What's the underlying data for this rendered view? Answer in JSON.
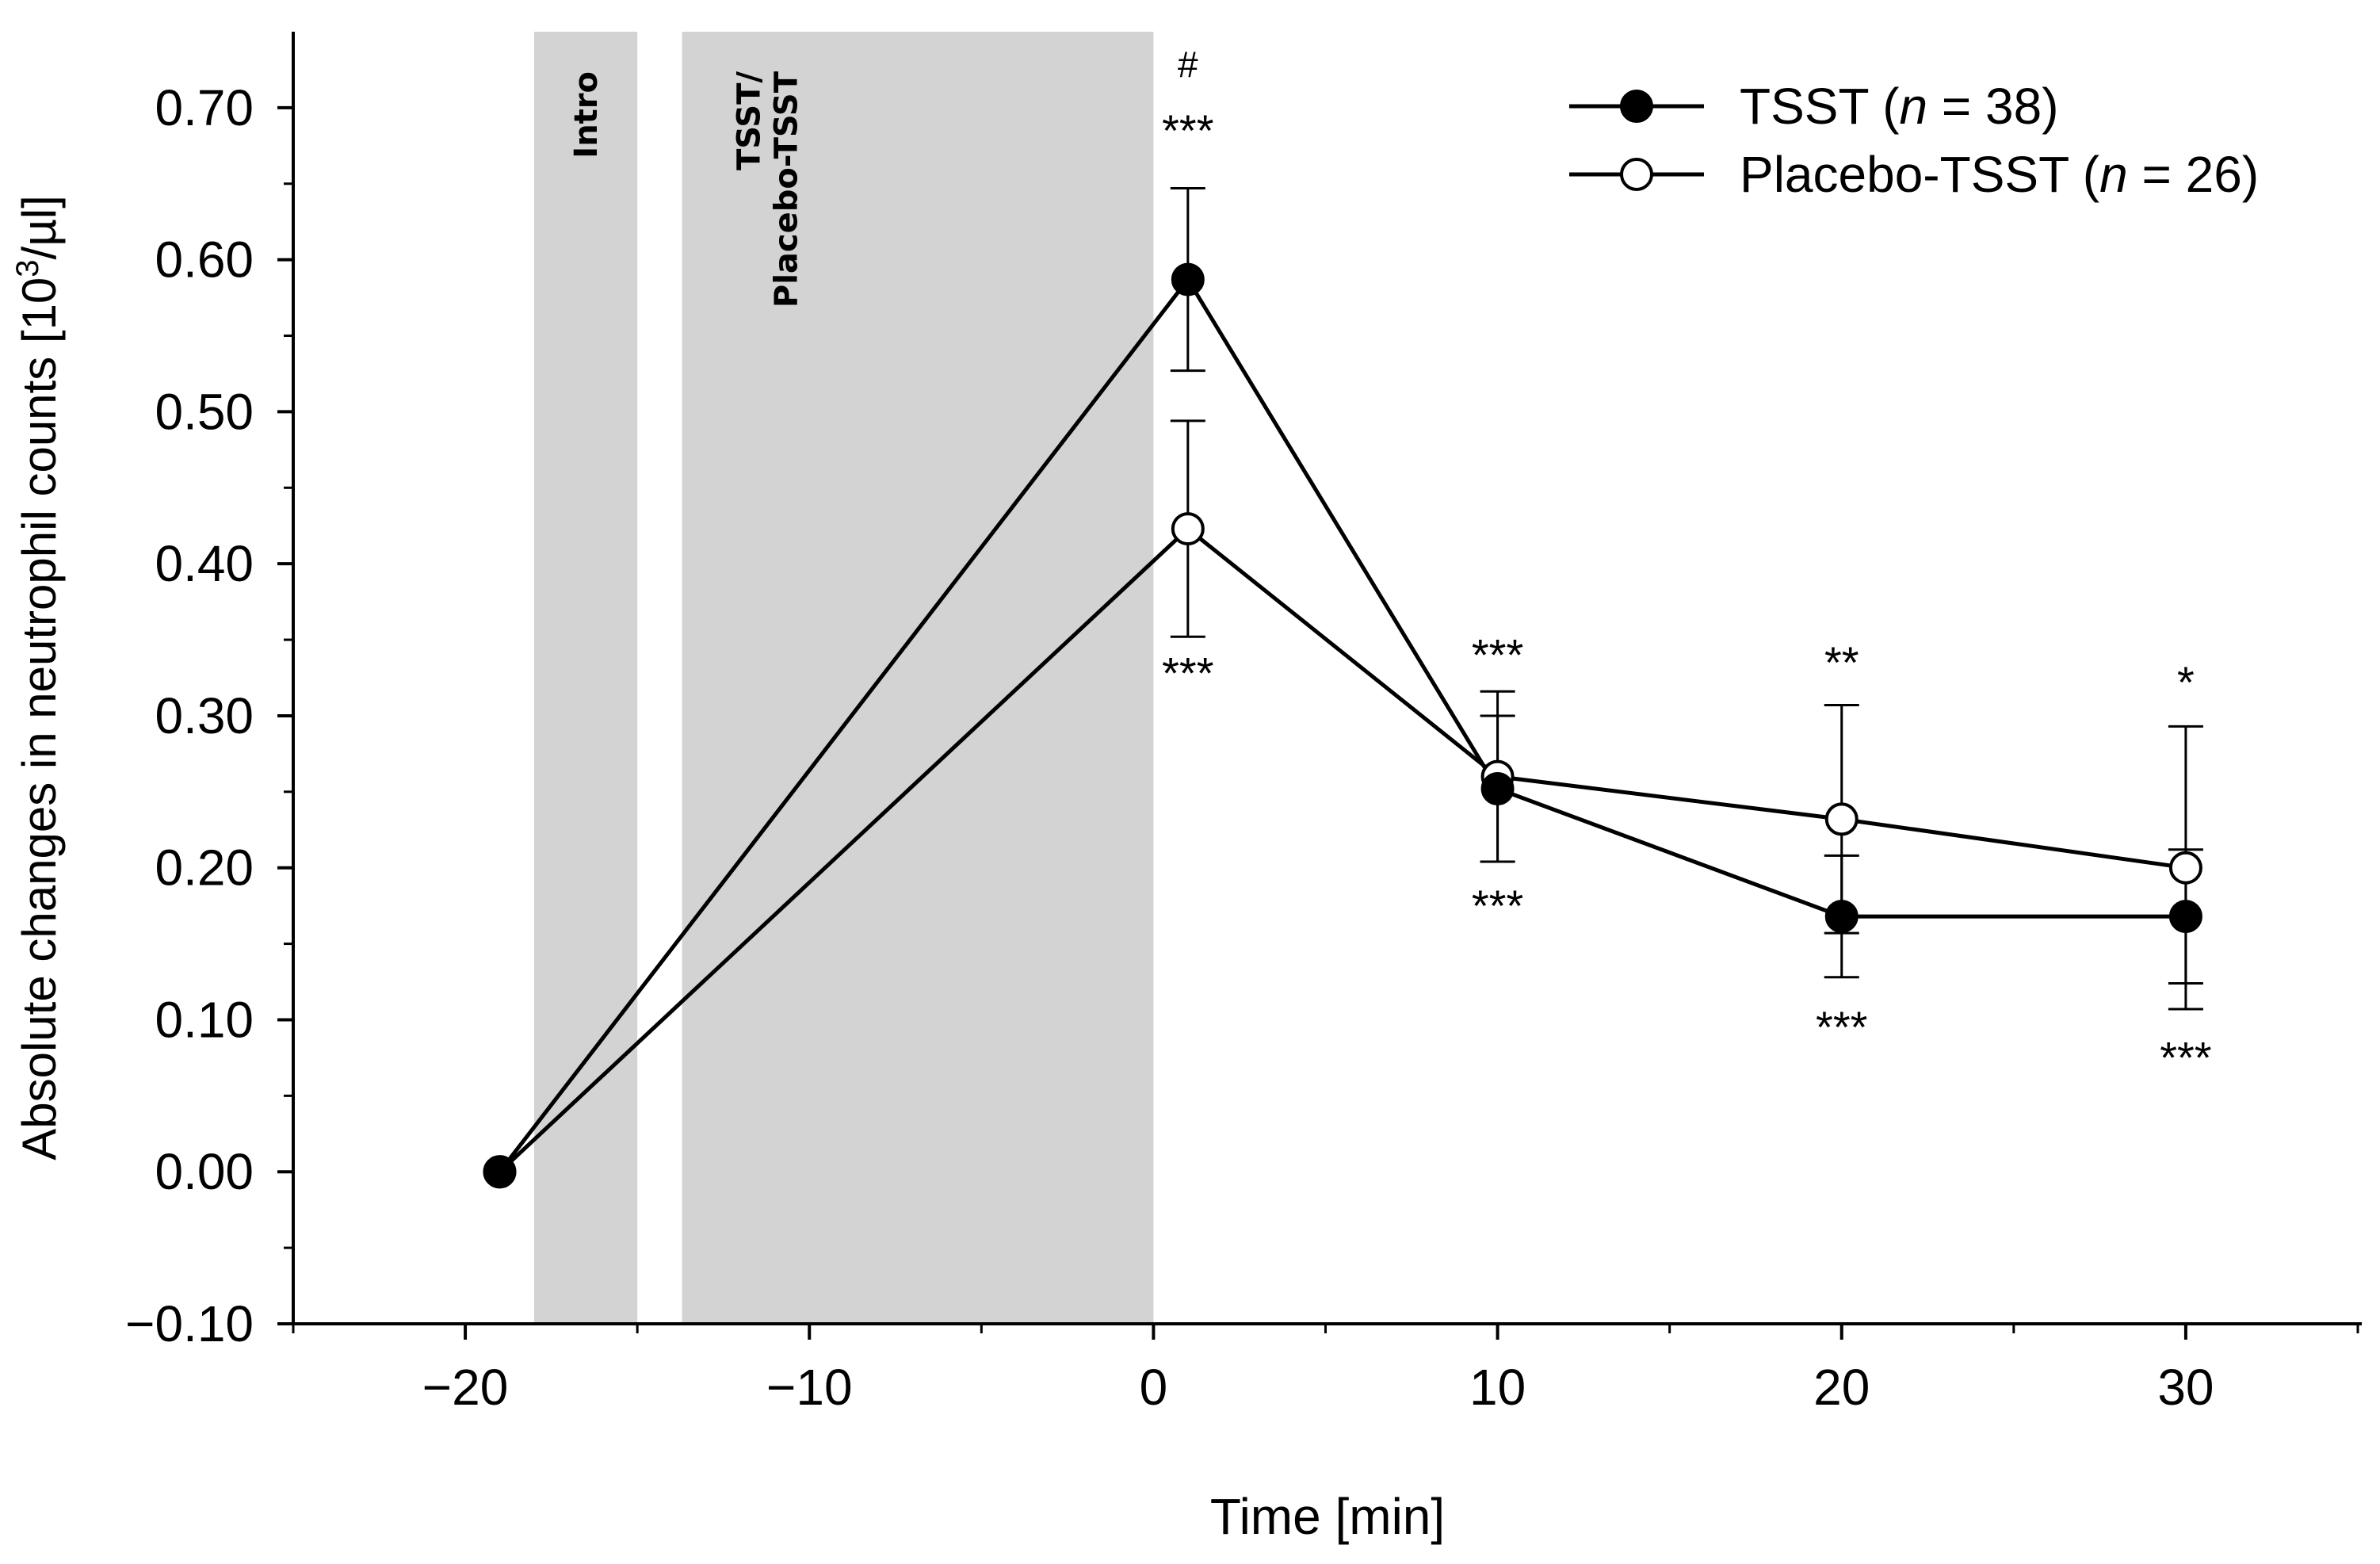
{
  "chart_data": {
    "type": "line",
    "title": "",
    "xlabel": "Time [min]",
    "ylabel_main": "Absolute changes in neutrophil counts [10",
    "ylabel_sup": "3",
    "ylabel_tail": "/µl]",
    "xlim": [
      -25,
      35
    ],
    "ylim": [
      -0.1,
      0.75
    ],
    "x_ticks": [
      -20,
      -10,
      0,
      10,
      20,
      30
    ],
    "x_tick_labels": [
      "−20",
      "−10",
      "0",
      "10",
      "20",
      "30"
    ],
    "y_ticks": [
      -0.1,
      0.0,
      0.1,
      0.2,
      0.3,
      0.4,
      0.5,
      0.6,
      0.7
    ],
    "y_tick_labels": [
      "−0.10",
      "0.00",
      "0.10",
      "0.20",
      "0.30",
      "0.40",
      "0.50",
      "0.60",
      "0.70"
    ],
    "x_minor_ticks": [
      -25,
      -15,
      -5,
      5,
      15,
      25,
      35
    ],
    "y_minor_ticks": [
      -0.05,
      0.05,
      0.15,
      0.25,
      0.35,
      0.45,
      0.55,
      0.65
    ],
    "shaded_bands": [
      {
        "label": "Intro",
        "x0": -18,
        "x1": -15
      },
      {
        "label_line1": "TSST/",
        "label_line2": "Placebo-TSST",
        "x0": -13.7,
        "x1": 0
      }
    ],
    "series": [
      {
        "name": "TSST",
        "n_label": "n",
        "n_value": "= 38)",
        "marker": "filled",
        "x": [
          -19,
          1,
          10,
          20,
          30
        ],
        "values": [
          0.0,
          0.587,
          0.252,
          0.168,
          0.168
        ],
        "err": [
          0,
          0.06,
          0.048,
          0.04,
          0.044
        ]
      },
      {
        "name": "Placebo-TSST",
        "n_label": "n",
        "n_value": "= 26)",
        "marker": "open",
        "x": [
          -19,
          1,
          10,
          20,
          30
        ],
        "values": [
          0.0,
          0.423,
          0.26,
          0.232,
          0.2
        ],
        "err": [
          0,
          0.071,
          0.056,
          0.075,
          0.093
        ]
      }
    ],
    "annotations": [
      {
        "text": "#",
        "x": 1,
        "y": 0.72
      },
      {
        "text": "***",
        "x": 1,
        "y": 0.675
      },
      {
        "text": "***",
        "x": 1,
        "y": 0.318
      },
      {
        "text": "***",
        "x": 10,
        "y": 0.33
      },
      {
        "text": "***",
        "x": 10,
        "y": 0.165
      },
      {
        "text": "**",
        "x": 20,
        "y": 0.325
      },
      {
        "text": "***",
        "x": 20,
        "y": 0.085
      },
      {
        "text": "*",
        "x": 30,
        "y": 0.312
      },
      {
        "text": "***",
        "x": 30,
        "y": 0.065
      }
    ],
    "legend_position": "top-right"
  }
}
